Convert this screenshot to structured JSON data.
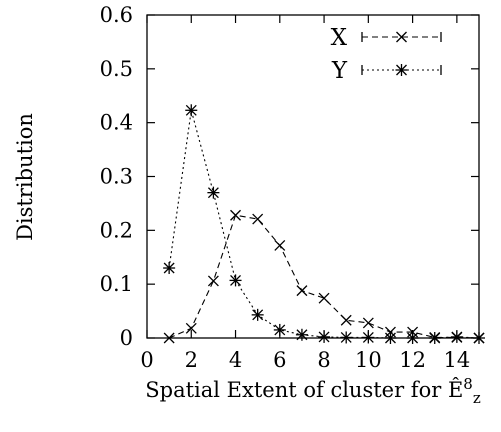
{
  "chart_data": {
    "type": "line",
    "xlabel": "Spatial Extent of cluster for Ê",
    "xlabel_sup": "8",
    "xlabel_sub": "z",
    "ylabel": "Distribution",
    "xlim": [
      0,
      15
    ],
    "ylim": [
      0,
      0.6
    ],
    "xticks": [
      "0",
      "2",
      "4",
      "6",
      "8",
      "10",
      "12",
      "14"
    ],
    "yticks": [
      "0",
      "0.1",
      "0.2",
      "0.3",
      "0.4",
      "0.5",
      "0.6"
    ],
    "legend_position": "top-right",
    "series": [
      {
        "name": "X",
        "marker": "x",
        "dash": "dashed",
        "x": [
          1,
          2,
          3,
          4,
          5,
          6,
          7,
          8,
          9,
          10,
          11,
          12,
          13,
          14,
          15
        ],
        "y": [
          0.0,
          0.018,
          0.106,
          0.228,
          0.221,
          0.172,
          0.088,
          0.074,
          0.033,
          0.028,
          0.011,
          0.011,
          0.001,
          0.001,
          0.0
        ]
      },
      {
        "name": "Y",
        "marker": "asterisk",
        "dash": "dotted",
        "x": [
          1,
          2,
          3,
          4,
          5,
          6,
          7,
          8,
          9,
          10,
          11,
          12,
          13,
          14,
          15
        ],
        "y": [
          0.13,
          0.423,
          0.27,
          0.107,
          0.043,
          0.015,
          0.006,
          0.002,
          0.001,
          0.001,
          0.0,
          0.0,
          0.0,
          0.002,
          0.0
        ]
      }
    ]
  }
}
